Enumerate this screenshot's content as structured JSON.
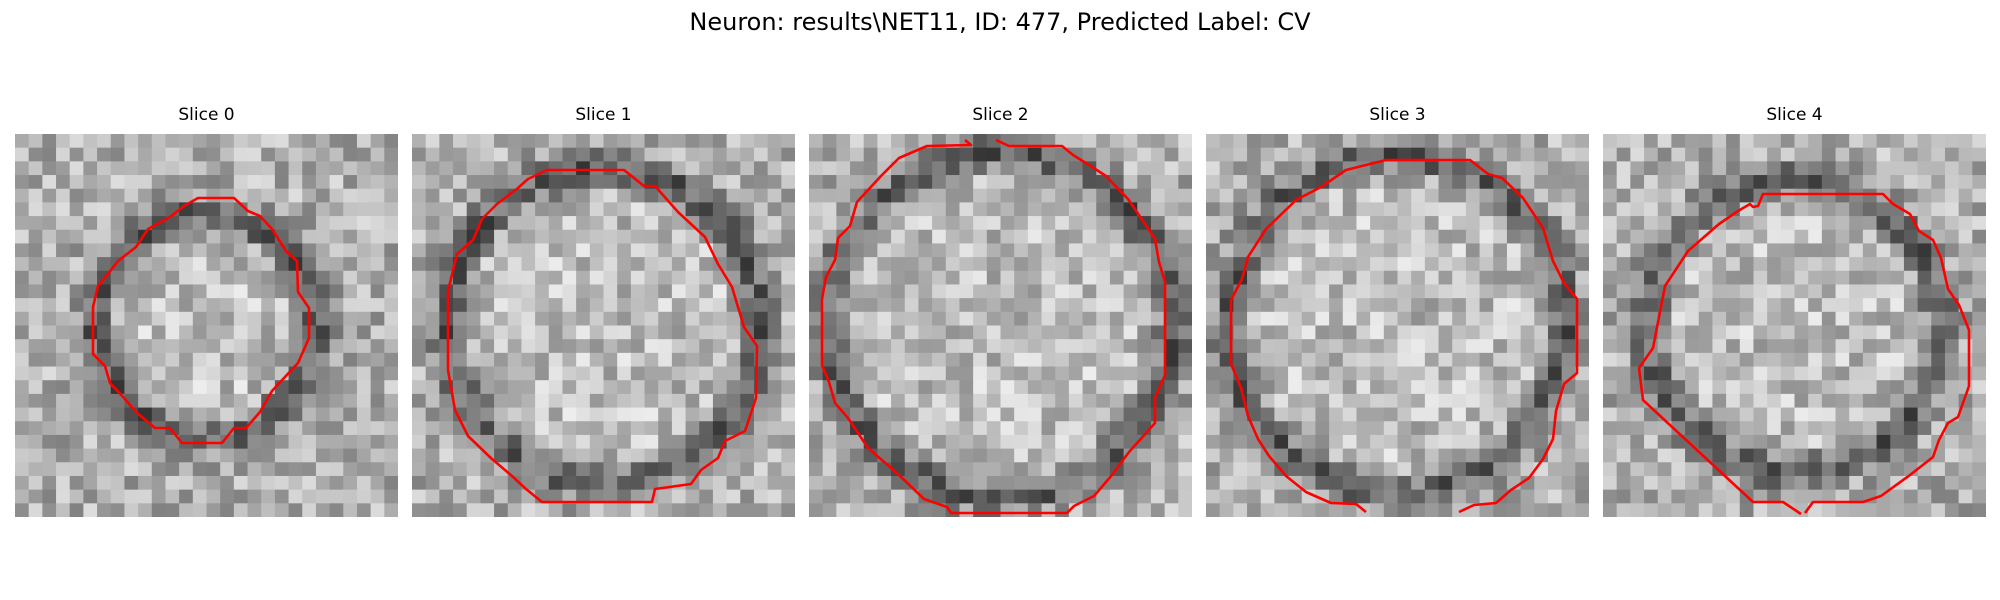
{
  "title": "Neuron: results\\NET11, ID: 477, Predicted Label: CV",
  "panels": [
    {
      "title": "Slice 0",
      "ring_radius": 0.29
    },
    {
      "title": "Slice 1",
      "ring_radius": 0.41
    },
    {
      "title": "Slice 2",
      "ring_radius": 0.45
    },
    {
      "title": "Slice 3",
      "ring_radius": 0.44
    },
    {
      "title": "Slice 4",
      "ring_radius": 0.38
    }
  ],
  "colors": {
    "contour": "#ff0000",
    "background": "#ffffff"
  }
}
